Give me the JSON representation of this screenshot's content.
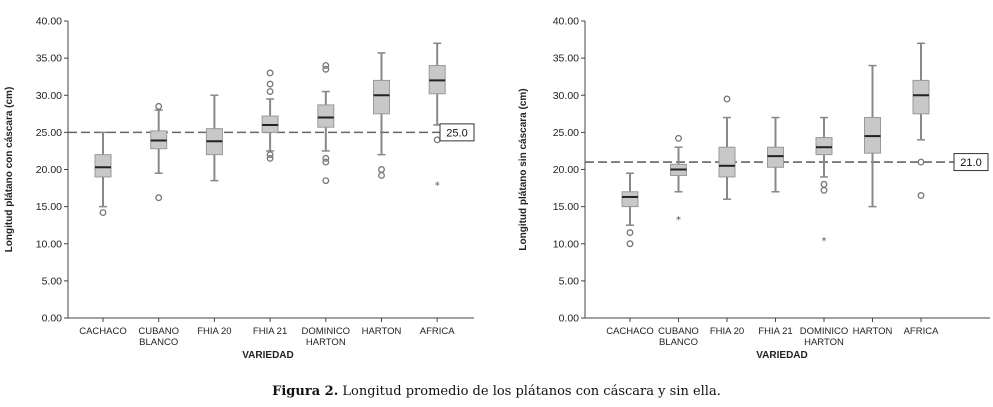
{
  "caption": {
    "label": "Figura 2.",
    "text": " Longitud promedio de los plátanos con cáscara y sin ella."
  },
  "colors": {
    "box": "#c8c8c8",
    "whisker": "#888888",
    "median": "#222222",
    "refline": "#666666"
  },
  "chart_data": [
    {
      "type": "boxplot",
      "ylabel": "Longitud plátano con cáscara (cm)",
      "xlabel": "VARIEDAD",
      "ylim": [
        0,
        40
      ],
      "yticks": [
        "0.00",
        "5.00",
        "10.00",
        "15.00",
        "20.00",
        "25.00",
        "30.00",
        "35.00",
        "40.00"
      ],
      "categories": [
        [
          "CACHACO"
        ],
        [
          "CUBANO",
          "BLANCO"
        ],
        [
          "FHIA 20"
        ],
        [
          "FHIA 21"
        ],
        [
          "DOMINICO",
          "HARTON"
        ],
        [
          "HARTON"
        ],
        [
          "AFRICA"
        ]
      ],
      "boxes": [
        {
          "min": 15,
          "q1": 19,
          "median": 20.3,
          "q3": 22,
          "max": 25,
          "outliers": [
            14.2
          ],
          "extremes": []
        },
        {
          "min": 19.5,
          "q1": 22.8,
          "median": 23.9,
          "q3": 25.2,
          "max": 28,
          "outliers": [
            28.5,
            16.2
          ],
          "extremes": []
        },
        {
          "min": 18.5,
          "q1": 22,
          "median": 23.8,
          "q3": 25.5,
          "max": 30,
          "outliers": [],
          "extremes": []
        },
        {
          "min": 22.5,
          "q1": 25,
          "median": 26,
          "q3": 27.2,
          "max": 29.5,
          "outliers": [
            33,
            31.5,
            30.5,
            22,
            21.5
          ],
          "extremes": []
        },
        {
          "min": 22.5,
          "q1": 25.7,
          "median": 27,
          "q3": 28.7,
          "max": 30.5,
          "outliers": [
            34,
            33.5,
            21.5,
            21,
            18.5
          ],
          "extremes": []
        },
        {
          "min": 22,
          "q1": 27.5,
          "median": 30,
          "q3": 32,
          "max": 35.7,
          "outliers": [
            20,
            19.2
          ],
          "extremes": []
        },
        {
          "min": 26,
          "q1": 30.2,
          "median": 32,
          "q3": 34,
          "max": 37,
          "outliers": [
            24
          ],
          "extremes": [
            18
          ]
        }
      ],
      "reference_line": {
        "value": 25.0,
        "label": "25.0"
      }
    },
    {
      "type": "boxplot",
      "ylabel": "Longitud plátano sin cáscara (cm)",
      "xlabel": "VARIEDAD",
      "ylim": [
        0,
        40
      ],
      "yticks": [
        "0.00",
        "5.00",
        "10.00",
        "15.00",
        "20.00",
        "25.00",
        "30.00",
        "35.00",
        "40.00"
      ],
      "categories": [
        [
          "CACHACO"
        ],
        [
          "CUBANO",
          "BLANCO"
        ],
        [
          "FHIA 20"
        ],
        [
          "FHIA 21"
        ],
        [
          "DOMINICO",
          "HARTON"
        ],
        [
          "HARTON"
        ],
        [
          "AFRICA"
        ]
      ],
      "boxes": [
        {
          "min": 12.5,
          "q1": 15,
          "median": 16.3,
          "q3": 17,
          "max": 19.5,
          "outliers": [
            11.5,
            10
          ],
          "extremes": []
        },
        {
          "min": 17,
          "q1": 19.2,
          "median": 20,
          "q3": 20.7,
          "max": 23,
          "outliers": [
            24.2
          ],
          "extremes": [
            13.3
          ]
        },
        {
          "min": 16,
          "q1": 19,
          "median": 20.5,
          "q3": 23,
          "max": 27,
          "outliers": [
            29.5
          ],
          "extremes": []
        },
        {
          "min": 17,
          "q1": 20.3,
          "median": 21.8,
          "q3": 23,
          "max": 27,
          "outliers": [],
          "extremes": []
        },
        {
          "min": 19,
          "q1": 22,
          "median": 23,
          "q3": 24.3,
          "max": 27,
          "outliers": [
            18,
            17.2
          ],
          "extremes": [
            10.5
          ]
        },
        {
          "min": 15,
          "q1": 22.2,
          "median": 24.5,
          "q3": 27,
          "max": 34,
          "outliers": [],
          "extremes": []
        },
        {
          "min": 24,
          "q1": 27.5,
          "median": 30,
          "q3": 32,
          "max": 37,
          "outliers": [
            21,
            16.5
          ],
          "extremes": []
        }
      ],
      "reference_line": {
        "value": 21.0,
        "label": "21.0"
      }
    }
  ]
}
